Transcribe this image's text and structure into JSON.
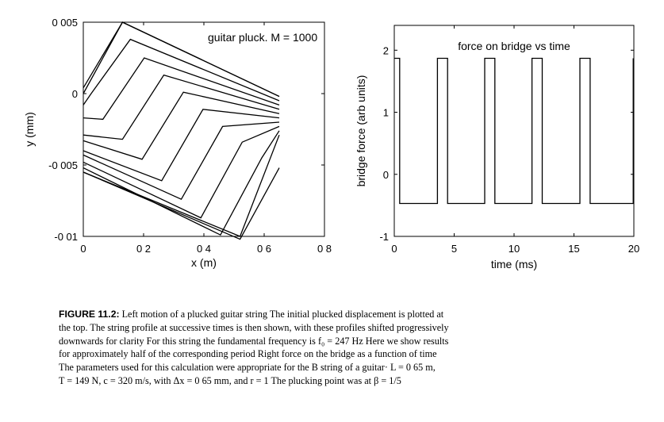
{
  "chart_data": [
    {
      "type": "line",
      "title": "guitar pluck. M = 1000",
      "xlabel": "x (m)",
      "ylabel": "y (mm)",
      "xlim": [
        0,
        0.8
      ],
      "ylim": [
        -0.01,
        0.005
      ],
      "xticks": [
        0,
        0.2,
        0.4,
        0.6,
        0.8
      ],
      "xtick_labels": [
        "0",
        "0 2",
        "0 4",
        "0 6",
        "0 8"
      ],
      "yticks": [
        0.005,
        0,
        -0.005,
        -0.01
      ],
      "ytick_labels": [
        "0 005",
        "0",
        "-0 005",
        "-0 01"
      ],
      "grid": false,
      "series": [
        {
          "x": [
            0,
            0.13,
            0.65
          ],
          "y": [
            0,
            0.005,
            -0.0002
          ]
        },
        {
          "x": [
            0,
            0.13,
            0.65
          ],
          "y": [
            0.0004,
            0.005,
            -0.0002
          ]
        },
        {
          "x": [
            0,
            0.026,
            0.156,
            0.65
          ],
          "y": [
            -0.0008,
            0,
            0.0038,
            -0.0005
          ]
        },
        {
          "x": [
            0,
            0.065,
            0.202,
            0.65
          ],
          "y": [
            -0.0017,
            -0.0018,
            0.0025,
            -0.0008
          ]
        },
        {
          "x": [
            0,
            0.13,
            0.267,
            0.65
          ],
          "y": [
            -0.0029,
            -0.0032,
            0.0013,
            -0.0011
          ]
        },
        {
          "x": [
            0,
            0.195,
            0.332,
            0.65
          ],
          "y": [
            -0.0033,
            -0.0046,
            0.0001,
            -0.0014
          ]
        },
        {
          "x": [
            0,
            0.26,
            0.397,
            0.65
          ],
          "y": [
            -0.004,
            -0.0061,
            -0.0011,
            -0.0017
          ]
        },
        {
          "x": [
            0,
            0.325,
            0.462,
            0.65
          ],
          "y": [
            -0.0043,
            -0.0074,
            -0.0023,
            -0.002
          ]
        },
        {
          "x": [
            0,
            0.39,
            0.527,
            0.65
          ],
          "y": [
            -0.0048,
            -0.0087,
            -0.0034,
            -0.0023
          ]
        },
        {
          "x": [
            0,
            0.455,
            0.592,
            0.65
          ],
          "y": [
            -0.0052,
            -0.0099,
            -0.0045,
            -0.0026
          ]
        },
        {
          "x": [
            0,
            0.52,
            0.65
          ],
          "y": [
            -0.0055,
            -0.01,
            -0.0029
          ]
        },
        {
          "x": [
            0,
            0.52,
            0.65
          ],
          "y": [
            -0.0055,
            -0.0102,
            -0.0052
          ]
        }
      ]
    },
    {
      "type": "line",
      "title": "force on bridge vs time",
      "xlabel": "time (ms)",
      "ylabel": "bridge force (arb units)",
      "xlim": [
        0,
        20
      ],
      "ylim": [
        -1,
        2.4
      ],
      "xticks": [
        0,
        5,
        10,
        15,
        20
      ],
      "xtick_labels": [
        "0",
        "5",
        "10",
        "15",
        "20"
      ],
      "yticks": [
        2,
        1,
        0,
        -1
      ],
      "ytick_labels": [
        "2",
        "1",
        "0",
        "-1"
      ],
      "grid": false,
      "series": [
        {
          "x": [
            0,
            0,
            0.45,
            0.45,
            3.6,
            3.6,
            4.45,
            4.45,
            7.55,
            7.55,
            8.4,
            8.4,
            11.5,
            11.5,
            12.35,
            12.35,
            15.5,
            15.5,
            16.35,
            16.35,
            19.95,
            19.95
          ],
          "y": [
            1.87,
            1.87,
            1.87,
            -0.47,
            -0.47,
            1.87,
            1.87,
            -0.47,
            -0.47,
            1.87,
            1.87,
            -0.47,
            -0.47,
            1.87,
            1.87,
            -0.47,
            -0.47,
            1.87,
            1.87,
            -0.47,
            -0.47,
            1.87
          ]
        }
      ]
    }
  ],
  "caption": {
    "lead": "FIGURE 11.2:",
    "lines": [
      "Left  motion of a plucked guitar string  The initial plucked displacement is plotted at",
      "the top.  The string profile at successive times is then shown, with these profiles shifted progressively",
      "downwards for clarity  For this string the fundamental frequency is f₀ = 247 Hz  Here we show results",
      "for approximately half of the corresponding period  Right  force on the bridge as a function of time",
      "The parameters used for this calculation were appropriate for the B string of a guitar· L = 0 65 m,",
      "T = 149 N, c = 320 m/s, with Δx = 0 65 mm, and r = 1  The plucking point was at β = 1/5"
    ]
  }
}
